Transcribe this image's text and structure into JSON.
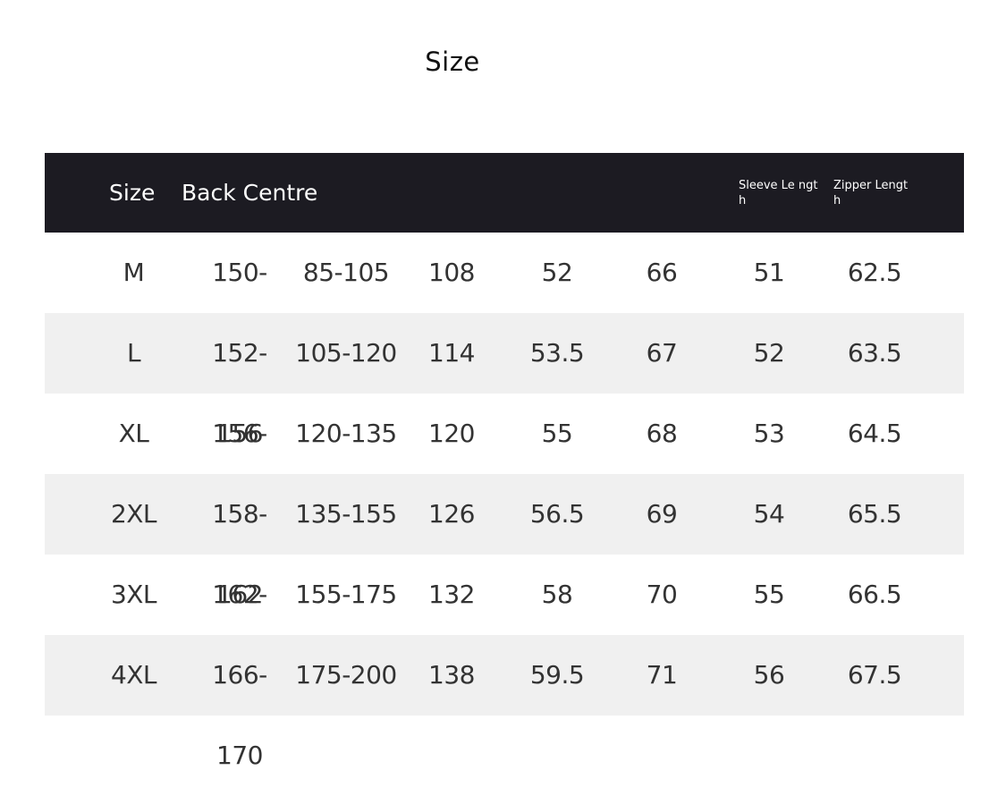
{
  "title": "Size",
  "table": {
    "headers": [
      "Size",
      "Back Centre",
      "",
      "",
      "",
      "",
      "Sleeve Le ngth",
      "Zipper Lengt h"
    ],
    "rows": [
      [
        "M",
        "150-152",
        "85-105",
        "108",
        "52",
        "66",
        "51",
        "62.5"
      ],
      [
        "L",
        "152-156",
        "105-120",
        "114",
        "53.5",
        "67",
        "52",
        "63.5"
      ],
      [
        "XL",
        "156-158",
        "120-135",
        "120",
        "55",
        "68",
        "53",
        "64.5"
      ],
      [
        "2XL",
        "158-162",
        "135-155",
        "126",
        "56.5",
        "69",
        "54",
        "65.5"
      ],
      [
        "3XL",
        "162-166",
        "155-175",
        "132",
        "58",
        "70",
        "55",
        "66.5"
      ],
      [
        "4XL",
        "166-170",
        "175-200",
        "138",
        "59.5",
        "71",
        "56",
        "67.5"
      ]
    ]
  },
  "colors": {
    "header_bg": "#1c1b22",
    "alt_row_bg": "#f0f0f0",
    "text": "#333333"
  }
}
